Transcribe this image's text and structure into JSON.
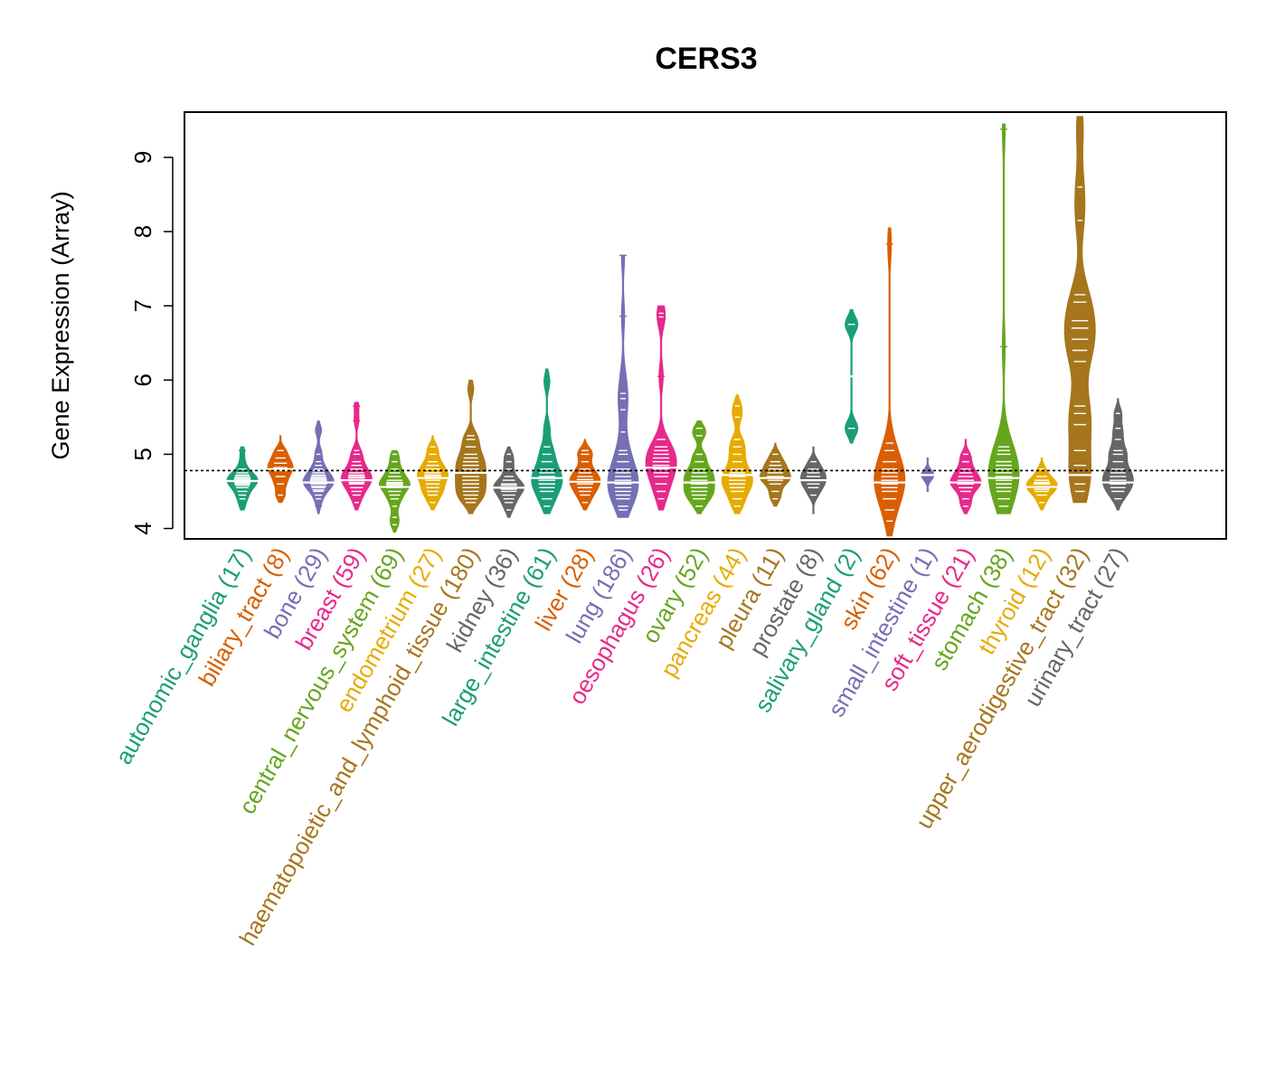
{
  "chart_data": {
    "type": "beanplot",
    "title": "CERS3",
    "ylabel": "Gene Expression (Array)",
    "xlabel": "",
    "ylim": [
      3.86,
      9.61
    ],
    "yticks": [
      4,
      5,
      6,
      7,
      8,
      9
    ],
    "reference_line": 4.78,
    "grid": false,
    "legend": "none",
    "categories": [
      {
        "label": "autonomic_ganglia (17)",
        "color": "#1B9E77",
        "center": 4.64,
        "min": 4.25,
        "max": 5.1,
        "values": [
          4.3,
          4.4,
          4.45,
          4.5,
          4.55,
          4.58,
          4.6,
          4.62,
          4.64,
          4.66,
          4.68,
          4.7,
          4.72,
          4.75,
          4.8,
          4.9,
          5.05
        ]
      },
      {
        "label": "biliary_tract (8)",
        "color": "#D95F02",
        "center": 4.8,
        "min": 4.35,
        "max": 5.25,
        "values": [
          4.45,
          4.6,
          4.7,
          4.78,
          4.82,
          4.88,
          4.95,
          5.05
        ]
      },
      {
        "label": "bone (29)",
        "color": "#7570B3",
        "center": 4.62,
        "min": 4.2,
        "max": 5.45,
        "values": [
          4.3,
          4.4,
          4.45,
          4.5,
          4.52,
          4.55,
          4.57,
          4.6,
          4.6,
          4.62,
          4.63,
          4.65,
          4.66,
          4.68,
          4.7,
          4.72,
          4.75,
          4.78,
          4.8,
          4.85,
          4.9,
          5.0,
          5.05,
          5.3,
          5.35
        ]
      },
      {
        "label": "breast (59)",
        "color": "#E7298A",
        "center": 4.65,
        "min": 4.25,
        "max": 5.7,
        "values": [
          4.35,
          4.45,
          4.5,
          4.55,
          4.6,
          4.62,
          4.65,
          4.68,
          4.7,
          4.72,
          4.75,
          4.8,
          4.85,
          4.9,
          5.0,
          5.05,
          5.45,
          5.65
        ]
      },
      {
        "label": "central_nervous_system (69)",
        "color": "#66A61E",
        "center": 4.56,
        "min": 3.95,
        "max": 5.05,
        "values": [
          4.05,
          4.15,
          4.3,
          4.4,
          4.45,
          4.5,
          4.55,
          4.58,
          4.6,
          4.62,
          4.65,
          4.7,
          4.75,
          4.8,
          4.9,
          5.0
        ]
      },
      {
        "label": "endometrium (27)",
        "color": "#E6AB02",
        "center": 4.68,
        "min": 4.25,
        "max": 5.25,
        "values": [
          4.35,
          4.45,
          4.5,
          4.55,
          4.6,
          4.65,
          4.7,
          4.72,
          4.75,
          4.8,
          4.85,
          4.9,
          5.0,
          5.1
        ]
      },
      {
        "label": "haematopoietic_and_lymphoid_tissue (180)",
        "color": "#A6761D",
        "center": 4.75,
        "min": 4.2,
        "max": 6.0,
        "values": [
          4.35,
          4.4,
          4.45,
          4.5,
          4.55,
          4.6,
          4.65,
          4.7,
          4.75,
          4.8,
          4.85,
          4.9,
          4.95,
          5.0,
          5.1,
          5.2,
          5.25,
          5.88
        ]
      },
      {
        "label": "kidney (36)",
        "color": "#666666",
        "center": 4.55,
        "min": 4.15,
        "max": 5.1,
        "values": [
          4.25,
          4.35,
          4.4,
          4.45,
          4.5,
          4.53,
          4.55,
          4.58,
          4.6,
          4.65,
          4.7,
          4.8,
          4.9,
          5.0
        ]
      },
      {
        "label": "large_intestine (61)",
        "color": "#1B9E77",
        "center": 4.68,
        "min": 4.2,
        "max": 6.15,
        "values": [
          4.3,
          4.4,
          4.5,
          4.55,
          4.6,
          4.65,
          4.7,
          4.75,
          4.8,
          4.9,
          5.0,
          5.1,
          5.35,
          5.98
        ]
      },
      {
        "label": "liver (28)",
        "color": "#D95F02",
        "center": 4.63,
        "min": 4.25,
        "max": 5.2,
        "values": [
          4.35,
          4.45,
          4.5,
          4.55,
          4.6,
          4.63,
          4.66,
          4.7,
          4.75,
          4.8,
          4.9,
          5.0,
          5.05
        ]
      },
      {
        "label": "lung (186)",
        "color": "#7570B3",
        "center": 4.62,
        "min": 4.15,
        "max": 7.68,
        "values": [
          4.25,
          4.3,
          4.4,
          4.45,
          4.5,
          4.55,
          4.6,
          4.62,
          4.65,
          4.7,
          4.75,
          4.8,
          4.9,
          5.0,
          5.05,
          5.3,
          5.6,
          5.75,
          5.82,
          6.08,
          6.86,
          7.68
        ]
      },
      {
        "label": "oesophagus (26)",
        "color": "#E7298A",
        "center": 4.82,
        "min": 4.25,
        "max": 7.0,
        "values": [
          4.4,
          4.5,
          4.6,
          4.7,
          4.75,
          4.8,
          4.85,
          4.9,
          4.95,
          5.0,
          5.05,
          5.1,
          5.2,
          6.05,
          6.85,
          6.9
        ]
      },
      {
        "label": "ovary (52)",
        "color": "#66A61E",
        "center": 4.62,
        "min": 4.2,
        "max": 5.45,
        "values": [
          4.3,
          4.4,
          4.45,
          4.5,
          4.55,
          4.6,
          4.65,
          4.7,
          4.75,
          4.8,
          4.9,
          5.0,
          5.25,
          5.35
        ]
      },
      {
        "label": "pancreas (44)",
        "color": "#E6AB02",
        "center": 4.72,
        "min": 4.2,
        "max": 5.8,
        "values": [
          4.3,
          4.4,
          4.5,
          4.55,
          4.6,
          4.65,
          4.7,
          4.75,
          4.8,
          4.9,
          5.0,
          5.1,
          5.2,
          5.5,
          5.65
        ]
      },
      {
        "label": "pleura (11)",
        "color": "#A6761D",
        "center": 4.68,
        "min": 4.3,
        "max": 5.15,
        "values": [
          4.4,
          4.5,
          4.6,
          4.65,
          4.68,
          4.7,
          4.75,
          4.8,
          4.85,
          4.9,
          5.0
        ]
      },
      {
        "label": "prostate (8)",
        "color": "#666666",
        "center": 4.65,
        "min": 4.2,
        "max": 5.1,
        "values": [
          4.45,
          4.55,
          4.6,
          4.65,
          4.7,
          4.75,
          4.8,
          4.9
        ]
      },
      {
        "label": "salivary_gland (2)",
        "color": "#1B9E77",
        "center": 6.05,
        "min": 5.15,
        "max": 6.95,
        "values": [
          5.35,
          6.75
        ]
      },
      {
        "label": "skin (62)",
        "color": "#D95F02",
        "center": 4.62,
        "min": 3.9,
        "max": 8.05,
        "values": [
          4.1,
          4.25,
          4.4,
          4.5,
          4.55,
          4.6,
          4.65,
          4.7,
          4.75,
          4.8,
          4.9,
          5.05,
          5.15,
          7.83
        ]
      },
      {
        "label": "small_intestine (1)",
        "color": "#7570B3",
        "center": 4.72,
        "min": 4.5,
        "max": 4.95,
        "values": [
          4.72
        ]
      },
      {
        "label": "soft_tissue (21)",
        "color": "#E7298A",
        "center": 4.62,
        "min": 4.2,
        "max": 5.2,
        "values": [
          4.3,
          4.4,
          4.5,
          4.55,
          4.6,
          4.62,
          4.65,
          4.7,
          4.75,
          4.8,
          4.9,
          5.0
        ]
      },
      {
        "label": "stomach (38)",
        "color": "#66A61E",
        "center": 4.68,
        "min": 4.2,
        "max": 9.45,
        "values": [
          4.3,
          4.4,
          4.5,
          4.55,
          4.6,
          4.65,
          4.7,
          4.75,
          4.8,
          4.85,
          4.9,
          5.0,
          5.05,
          5.1,
          6.45,
          9.38
        ]
      },
      {
        "label": "thyroid (12)",
        "color": "#E6AB02",
        "center": 4.56,
        "min": 4.25,
        "max": 4.95,
        "values": [
          4.35,
          4.45,
          4.5,
          4.53,
          4.56,
          4.6,
          4.62,
          4.65,
          4.7,
          4.8
        ]
      },
      {
        "label": "upper_aerodigestive_tract (32)",
        "color": "#A6761D",
        "center": 4.72,
        "min": 4.35,
        "max": 9.55,
        "values": [
          4.5,
          4.6,
          4.85,
          5.05,
          5.4,
          5.55,
          5.65,
          6.25,
          6.4,
          6.55,
          6.7,
          6.8,
          7.05,
          7.15,
          8.15,
          8.6,
          9.4
        ]
      },
      {
        "label": "urinary_tract (27)",
        "color": "#666666",
        "center": 4.62,
        "min": 4.25,
        "max": 5.75,
        "values": [
          4.4,
          4.5,
          4.55,
          4.6,
          4.65,
          4.7,
          4.75,
          4.8,
          4.9,
          5.0,
          5.05,
          5.2,
          5.35,
          5.55
        ]
      }
    ]
  }
}
